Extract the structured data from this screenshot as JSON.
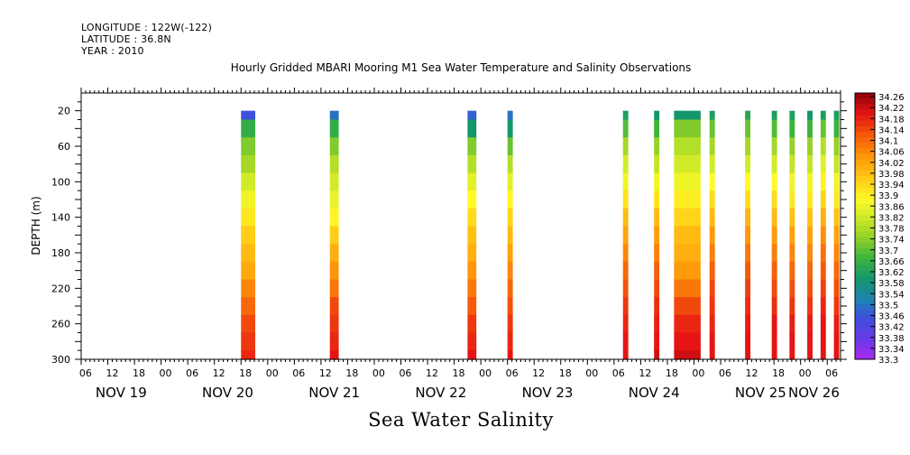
{
  "meta": {
    "longitude": "LONGITUDE : 122W(-122)",
    "latitude": "LATITUDE : 36.8N",
    "year": "YEAR : 2010"
  },
  "chart_data": {
    "type": "heatmap",
    "title": "Hourly Gridded MBARI Mooring M1 Sea Water Temperature and Salinity Observations",
    "bottom_title": "Sea Water Salinity",
    "ylabel": "DEPTH (m)",
    "xlabel": "",
    "y_range": [
      0,
      300
    ],
    "y_inverted": true,
    "y_ticks": [
      20,
      60,
      100,
      140,
      180,
      220,
      260,
      300
    ],
    "x_range_hours": [
      0,
      171
    ],
    "x_hour_labels": [
      "06",
      "12",
      "18",
      "00",
      "06",
      "12",
      "18",
      "00",
      "06",
      "12",
      "18",
      "00",
      "06",
      "12",
      "18",
      "00",
      "06",
      "12",
      "18",
      "00",
      "06",
      "12",
      "18",
      "00",
      "06",
      "12",
      "18",
      "00",
      "06"
    ],
    "x_day_labels": [
      {
        "label": "NOV 19",
        "hour": 9
      },
      {
        "label": "NOV 20",
        "hour": 33
      },
      {
        "label": "NOV 21",
        "hour": 57
      },
      {
        "label": "NOV 22",
        "hour": 81
      },
      {
        "label": "NOV 23",
        "hour": 105
      },
      {
        "label": "NOV 24",
        "hour": 129
      },
      {
        "label": "NOV 25",
        "hour": 153
      },
      {
        "label": "NOV 26",
        "hour": 165
      }
    ],
    "colorbar_labels": [
      "34.26",
      "34.22",
      "34.18",
      "34.14",
      "34.1",
      "34.06",
      "34.02",
      "33.98",
      "33.94",
      "33.9",
      "33.86",
      "33.82",
      "33.78",
      "33.74",
      "33.7",
      "33.66",
      "33.62",
      "33.58",
      "33.54",
      "33.5",
      "33.46",
      "33.42",
      "33.38",
      "33.34",
      "33.3"
    ],
    "colorbar_range": [
      33.3,
      34.3
    ],
    "profile_depths": [
      20,
      40,
      60,
      80,
      100,
      120,
      140,
      160,
      180,
      200,
      220,
      240,
      260,
      280,
      300
    ],
    "columns": [
      {
        "t_start": 36.0,
        "t_end": 39.2,
        "values": [
          33.46,
          33.66,
          33.74,
          33.78,
          33.84,
          33.88,
          33.93,
          33.97,
          34.0,
          34.03,
          34.08,
          34.12,
          34.16,
          34.18,
          34.2
        ]
      },
      {
        "t_start": 56.0,
        "t_end": 58.0,
        "values": [
          33.5,
          33.66,
          33.74,
          33.8,
          33.84,
          33.87,
          33.91,
          33.97,
          34.02,
          34.06,
          34.1,
          34.16,
          34.18,
          34.2,
          34.22
        ]
      },
      {
        "t_start": 87.0,
        "t_end": 89.0,
        "values": [
          33.48,
          33.6,
          33.74,
          33.8,
          33.86,
          33.9,
          33.95,
          33.99,
          34.02,
          34.06,
          34.1,
          34.14,
          34.18,
          34.2,
          34.22
        ]
      },
      {
        "t_start": 96.0,
        "t_end": 97.2,
        "values": [
          33.5,
          33.6,
          33.72,
          33.8,
          33.86,
          33.91,
          33.96,
          34.0,
          34.04,
          34.08,
          34.12,
          34.15,
          34.18,
          34.2,
          34.22
        ]
      },
      {
        "t_start": 122.0,
        "t_end": 123.2,
        "values": [
          33.62,
          33.7,
          33.78,
          33.84,
          33.88,
          33.94,
          34.0,
          34.04,
          34.08,
          34.12,
          34.15,
          34.18,
          34.2,
          34.22,
          34.22
        ]
      },
      {
        "t_start": 129.0,
        "t_end": 130.2,
        "values": [
          33.6,
          33.68,
          33.76,
          33.82,
          33.88,
          33.94,
          34.0,
          34.05,
          34.09,
          34.13,
          34.16,
          34.19,
          34.21,
          34.22,
          34.24
        ]
      },
      {
        "t_start": 133.5,
        "t_end": 139.5,
        "values": [
          33.6,
          33.74,
          33.8,
          33.84,
          33.88,
          33.92,
          33.96,
          34.0,
          34.02,
          34.05,
          34.1,
          34.16,
          34.2,
          34.22,
          34.24
        ]
      },
      {
        "t_start": 141.5,
        "t_end": 142.7,
        "values": [
          33.62,
          33.72,
          33.78,
          33.84,
          33.9,
          33.95,
          34.0,
          34.05,
          34.09,
          34.13,
          34.16,
          34.18,
          34.2,
          34.22,
          34.22
        ]
      },
      {
        "t_start": 149.5,
        "t_end": 150.7,
        "values": [
          33.64,
          33.72,
          33.78,
          33.84,
          33.9,
          33.95,
          34.01,
          34.06,
          34.1,
          34.14,
          34.17,
          34.19,
          34.21,
          34.22,
          34.22
        ]
      },
      {
        "t_start": 155.5,
        "t_end": 156.7,
        "values": [
          33.62,
          33.7,
          33.78,
          33.84,
          33.9,
          33.95,
          34.0,
          34.05,
          34.09,
          34.13,
          34.16,
          34.19,
          34.22,
          34.22,
          34.22
        ]
      },
      {
        "t_start": 159.5,
        "t_end": 160.7,
        "values": [
          33.62,
          33.68,
          33.76,
          33.82,
          33.88,
          33.93,
          33.99,
          34.04,
          34.08,
          34.12,
          34.15,
          34.18,
          34.21,
          34.22,
          34.22
        ]
      },
      {
        "t_start": 163.5,
        "t_end": 164.7,
        "values": [
          33.6,
          33.68,
          33.76,
          33.82,
          33.88,
          33.93,
          33.99,
          34.04,
          34.08,
          34.12,
          34.15,
          34.18,
          34.21,
          34.22,
          34.22
        ]
      },
      {
        "t_start": 166.5,
        "t_end": 167.7,
        "values": [
          33.62,
          33.72,
          33.8,
          33.86,
          33.91,
          33.96,
          34.02,
          34.07,
          34.11,
          34.14,
          34.17,
          34.2,
          34.22,
          34.22,
          34.22
        ]
      },
      {
        "t_start": 169.5,
        "t_end": 170.7,
        "values": [
          33.62,
          33.68,
          33.76,
          33.82,
          33.88,
          33.93,
          33.99,
          34.04,
          34.08,
          34.12,
          34.15,
          34.18,
          34.21,
          34.22,
          34.22
        ]
      }
    ]
  }
}
